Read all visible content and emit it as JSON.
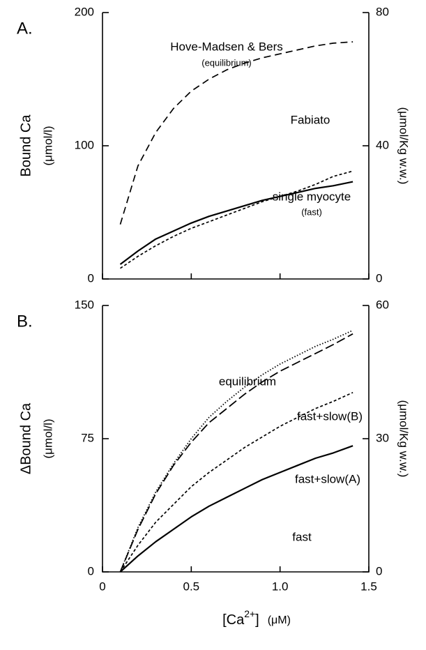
{
  "chart_data": [
    {
      "type": "line",
      "panel_label": "A.",
      "ylabel": "Bound Ca",
      "ylabel_unit": "(μmol/l)",
      "y2label": "(μmol/Kg w.w.)",
      "xlim": [
        0,
        1.5
      ],
      "xticks": [
        0,
        0.5,
        1,
        1.5
      ],
      "ylim": [
        0,
        200
      ],
      "yticks": [
        0,
        100,
        200
      ],
      "y2lim": [
        0,
        80
      ],
      "y2ticks": [
        0,
        40,
        80
      ],
      "x": [
        0.1,
        0.2,
        0.3,
        0.4,
        0.5,
        0.6,
        0.7,
        0.8,
        0.9,
        1.0,
        1.1,
        1.2,
        1.3,
        1.41
      ],
      "series": [
        {
          "name": "Hove-Madsen & Bers",
          "note": "(equilibrium)",
          "style": "dashed",
          "color": "#000000",
          "values": [
            41,
            85,
            110,
            128,
            141,
            150,
            157,
            162,
            166,
            169,
            172,
            175,
            177,
            178
          ]
        },
        {
          "name": "Fabiato",
          "style": "short-dashed",
          "color": "#000000",
          "values": [
            8,
            17,
            25,
            32,
            38,
            43,
            48,
            53,
            58,
            62,
            66,
            71,
            77,
            81
          ]
        },
        {
          "name": "single myocyte",
          "note": "(fast)",
          "style": "solid",
          "color": "#000000",
          "values": [
            11,
            21,
            30,
            36,
            42,
            47,
            51,
            55,
            59,
            62,
            65,
            68,
            70,
            73
          ]
        }
      ]
    },
    {
      "type": "line",
      "panel_label": "B.",
      "ylabel": "ΔBound Ca",
      "ylabel_unit": "(μmol/l)",
      "y2label": "(μmol/Kg w.w.)",
      "xlabel": "[Ca",
      "xlabel_sup": "2+",
      "xlabel_end": "]",
      "xlabel_unit": "(μM)",
      "xlim": [
        0,
        1.5
      ],
      "xticks": [
        0,
        0.5,
        {
          "value": 1,
          "label": "1.0"
        },
        1.5
      ],
      "ylim": [
        0,
        150
      ],
      "yticks": [
        0,
        75,
        150
      ],
      "y2lim": [
        0,
        60
      ],
      "y2ticks": [
        0,
        30,
        60
      ],
      "x": [
        0.1,
        0.2,
        0.3,
        0.4,
        0.5,
        0.6,
        0.7,
        0.8,
        0.9,
        1.0,
        1.1,
        1.2,
        1.3,
        1.41
      ],
      "series": [
        {
          "name": "equilibrium",
          "style": "dotted",
          "color": "#000000",
          "values": [
            0,
            25,
            45,
            61,
            75,
            87,
            96,
            104,
            111,
            117,
            122,
            127,
            131,
            136
          ]
        },
        {
          "name": "fast+slow(B)",
          "style": "long-dashed",
          "color": "#000000",
          "values": [
            0,
            24,
            44,
            60,
            73,
            84,
            92,
            100,
            107,
            113,
            118,
            123,
            128,
            134
          ]
        },
        {
          "name": "fast+slow(A)",
          "style": "short-dashed",
          "color": "#000000",
          "values": [
            0,
            15,
            28,
            38,
            48,
            56,
            63,
            70,
            76,
            82,
            87,
            92,
            96,
            101
          ]
        },
        {
          "name": "fast",
          "style": "solid",
          "color": "#000000",
          "values": [
            0,
            9,
            17,
            24,
            31,
            37,
            42,
            47,
            52,
            56,
            60,
            64,
            67,
            71
          ]
        }
      ]
    }
  ]
}
